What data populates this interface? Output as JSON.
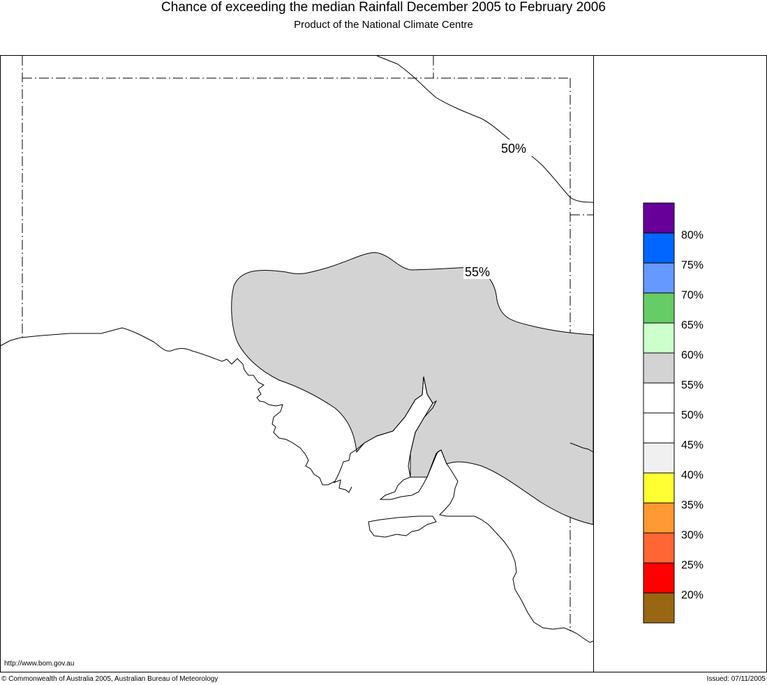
{
  "header": {
    "title": "Chance of exceeding the median Rainfall December 2005 to February 2006",
    "subtitle": "Product of the National Climate Centre"
  },
  "map": {
    "contours": [
      {
        "label": "50%"
      },
      {
        "label": "55%"
      }
    ],
    "colors": {
      "shaded_region": "#d3d3d3",
      "coastline": "#000000",
      "border": "#000000"
    }
  },
  "legend": {
    "bins": [
      {
        "color": "#660099"
      },
      {
        "color": "#0066ff",
        "label": "80%"
      },
      {
        "color": "#6699ff",
        "label": "75%"
      },
      {
        "color": "#66cc66",
        "label": "70%"
      },
      {
        "color": "#ccffcc",
        "label": "65%"
      },
      {
        "color": "#d3d3d3",
        "label": "60%"
      },
      {
        "color": "#ffffff",
        "label": "55%"
      },
      {
        "color": "#ffffff",
        "label": "50%"
      },
      {
        "color": "#f0f0f0",
        "label": "45%"
      },
      {
        "color": "#ffff33",
        "label": "40%"
      },
      {
        "color": "#ff9933",
        "label": "35%"
      },
      {
        "color": "#ff6633",
        "label": "30%"
      },
      {
        "color": "#ff0000",
        "label": "25%"
      },
      {
        "color": "#996611",
        "label": "20%"
      }
    ]
  },
  "footer": {
    "url": "http://www.bom.gov.au",
    "copyright": "© Commonwealth of Australia 2005, Australian Bureau of Meteorology",
    "issued": "Issued: 07/11/2005"
  }
}
